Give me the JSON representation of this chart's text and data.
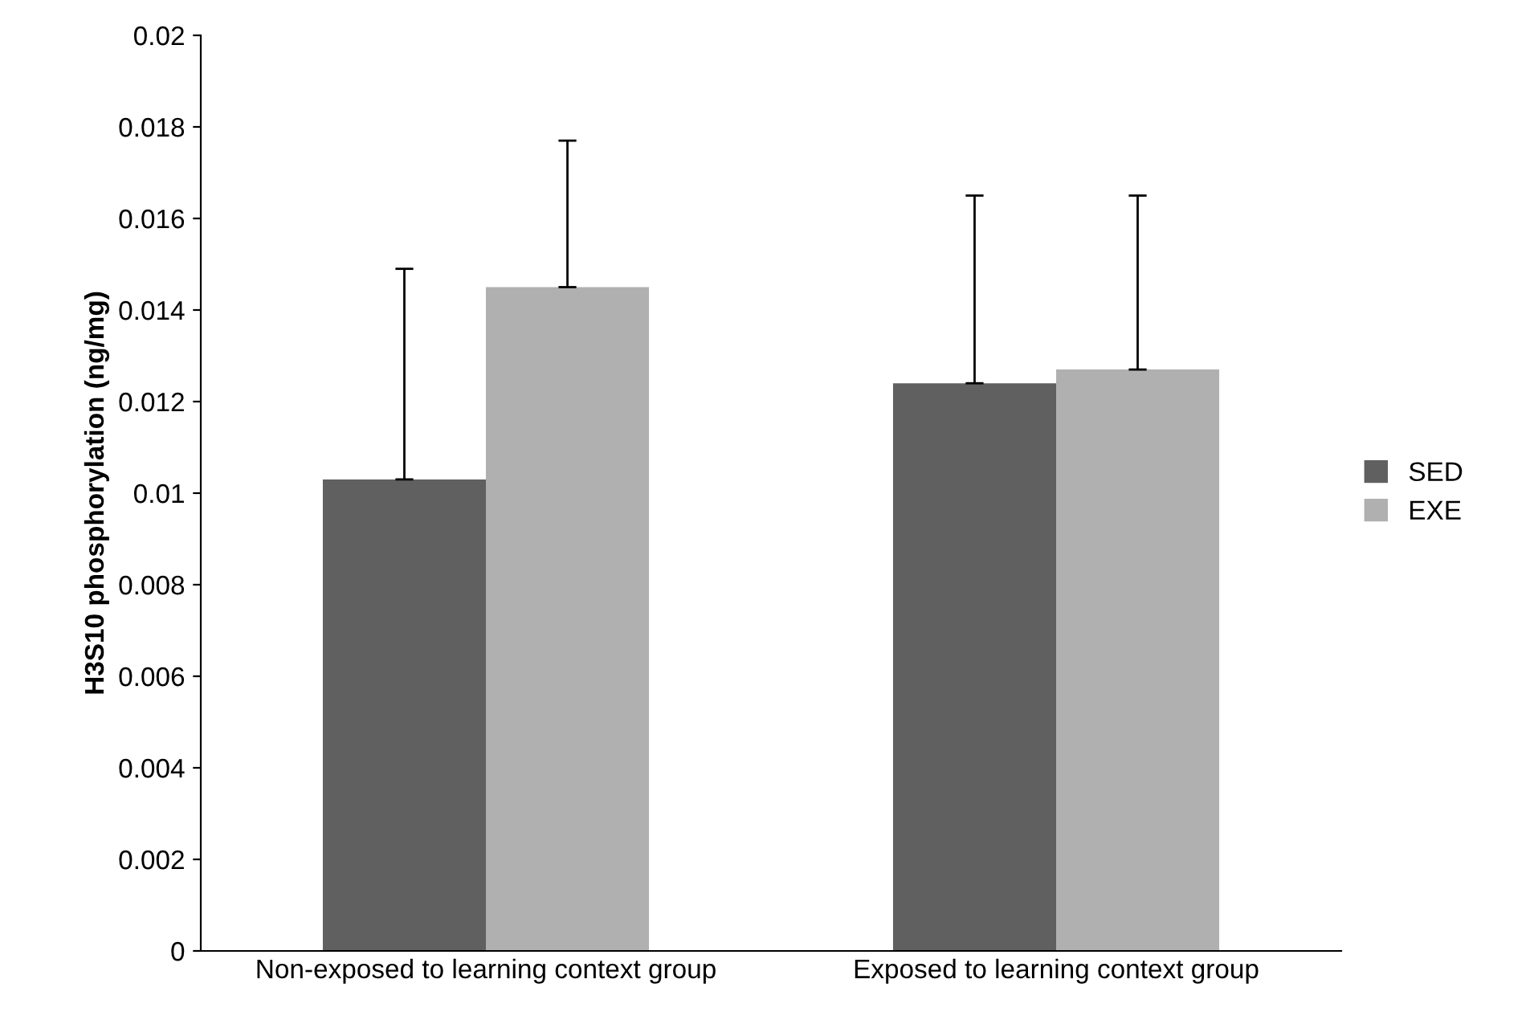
{
  "chart_data": {
    "type": "bar",
    "ylabel": "H3S10 phosphorylation (ng/mg)",
    "categories": [
      "Non-exposed to learning context group",
      "Exposed to learning context group"
    ],
    "series": [
      {
        "name": "SED",
        "color": "#606060",
        "values": [
          0.0103,
          0.0124
        ],
        "errors": [
          [
            0.0103,
            0.0149
          ],
          [
            0.0124,
            0.0165
          ]
        ]
      },
      {
        "name": "EXE",
        "color": "#b0b0b0",
        "values": [
          0.0145,
          0.0127
        ],
        "errors": [
          [
            0.0145,
            0.0177
          ],
          [
            0.0127,
            0.0165
          ]
        ]
      }
    ],
    "ylim": [
      0,
      0.02
    ],
    "yticks": [
      0,
      0.002,
      0.004,
      0.006,
      0.008,
      0.01,
      0.012,
      0.014,
      0.016,
      0.018,
      0.02
    ],
    "grid": false,
    "legend": "right"
  }
}
